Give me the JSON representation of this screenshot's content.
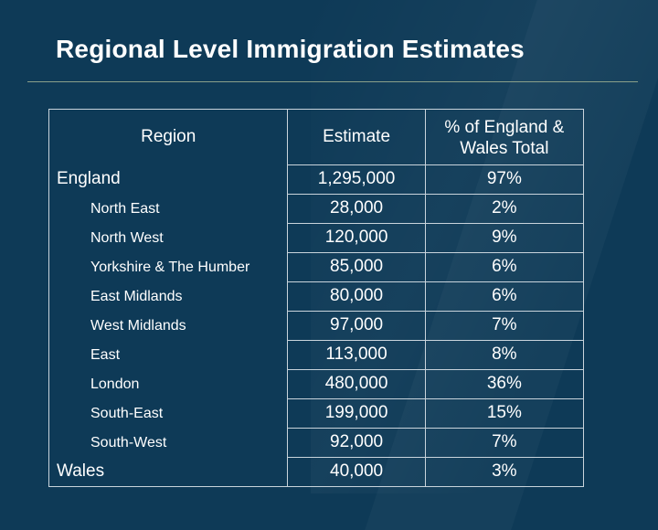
{
  "title": "Regional Level Immigration Estimates",
  "table": {
    "headers": {
      "region": "Region",
      "estimate": "Estimate",
      "percent_line1": "% of England &",
      "percent_line2": "Wales Total"
    },
    "rows": [
      {
        "region": "England",
        "estimate": "1,295,000",
        "percent": "97%",
        "level": "lead"
      },
      {
        "region": "North East",
        "estimate": "28,000",
        "percent": "2%",
        "level": "sub"
      },
      {
        "region": "North West",
        "estimate": "120,000",
        "percent": "9%",
        "level": "sub"
      },
      {
        "region": "Yorkshire & The Humber",
        "estimate": "85,000",
        "percent": "6%",
        "level": "sub"
      },
      {
        "region": "East Midlands",
        "estimate": "80,000",
        "percent": "6%",
        "level": "sub"
      },
      {
        "region": "West Midlands",
        "estimate": "97,000",
        "percent": "7%",
        "level": "sub"
      },
      {
        "region": "East",
        "estimate": "113,000",
        "percent": "8%",
        "level": "sub"
      },
      {
        "region": "London",
        "estimate": "480,000",
        "percent": "36%",
        "level": "sub"
      },
      {
        "region": "South-East",
        "estimate": "199,000",
        "percent": "15%",
        "level": "sub"
      },
      {
        "region": "South-West",
        "estimate": "92,000",
        "percent": "7%",
        "level": "sub"
      },
      {
        "region": "Wales",
        "estimate": "40,000",
        "percent": "3%",
        "level": "lead"
      }
    ]
  },
  "colors": {
    "background": "#0e3a57",
    "text": "#ffffff",
    "table_border": "#c9d4dc",
    "title_rule": "#8aa08a"
  }
}
